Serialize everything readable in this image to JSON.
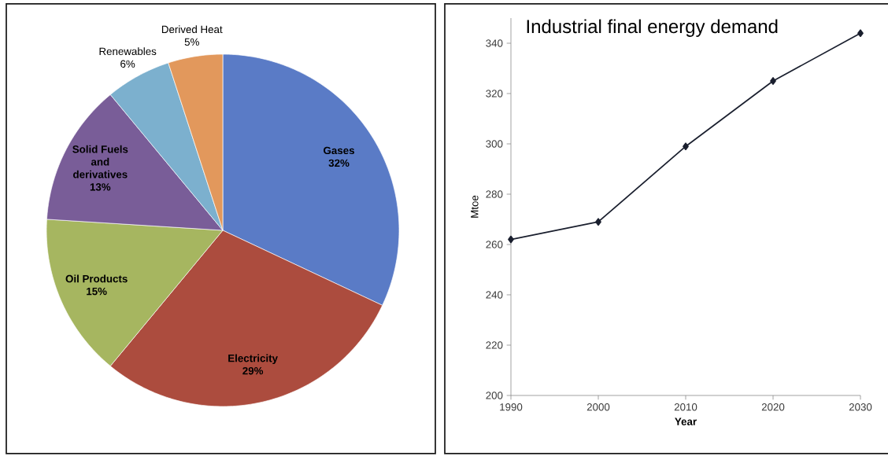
{
  "chart_data": [
    {
      "type": "pie",
      "categories": [
        "Gases",
        "Electricity",
        "Oil Products",
        "Solid Fuels and derivatives",
        "Renewables",
        "Derived Heat"
      ],
      "values": [
        32,
        29,
        15,
        13,
        6,
        5
      ],
      "value_labels": [
        "32%",
        "29%",
        "15%",
        "13%",
        "6%",
        "5%"
      ],
      "colors": [
        "#5a7bc6",
        "#ac4c3e",
        "#a6b660",
        "#795d98",
        "#7cb0ce",
        "#e2985c"
      ]
    },
    {
      "type": "line",
      "title": "Industrial final energy demand",
      "xlabel": "Year",
      "ylabel": "Mtoe",
      "x": [
        1990,
        2000,
        2010,
        2020,
        2030
      ],
      "values": [
        262,
        269,
        299,
        325,
        344
      ],
      "color": "#1a1f2e",
      "marker": "diamond",
      "xlim": [
        1990,
        2030
      ],
      "ylim": [
        200,
        350
      ],
      "xticks": [
        1990,
        2000,
        2010,
        2020,
        2030
      ],
      "yticks": [
        200,
        220,
        240,
        260,
        280,
        300,
        320,
        340
      ]
    }
  ]
}
